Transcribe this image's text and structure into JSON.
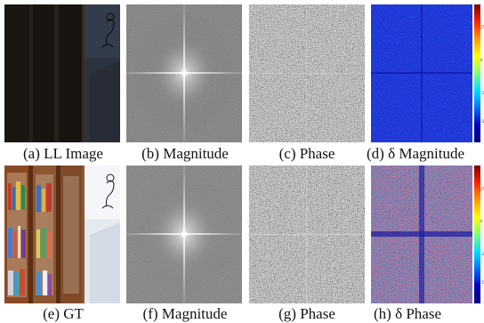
{
  "figure": {
    "top_row": {
      "captions": {
        "a": "(a) LL Image",
        "b": "(b) Magnitude",
        "c": "(c) Phase",
        "d": "(d) δ Magnitude"
      }
    },
    "bottom_row": {
      "captions": {
        "e": "(e) GT",
        "f": "(f) Magnitude",
        "g": "(g) Phase",
        "h": "(h) δ Phase"
      }
    },
    "colors": {
      "ll_image_dark": "#1b1916",
      "gt_wood": "#7a3d1e",
      "fft_gray": "#6e6e6e",
      "delta_blue": "#1930d8",
      "delta_red": "#c8202a"
    }
  }
}
